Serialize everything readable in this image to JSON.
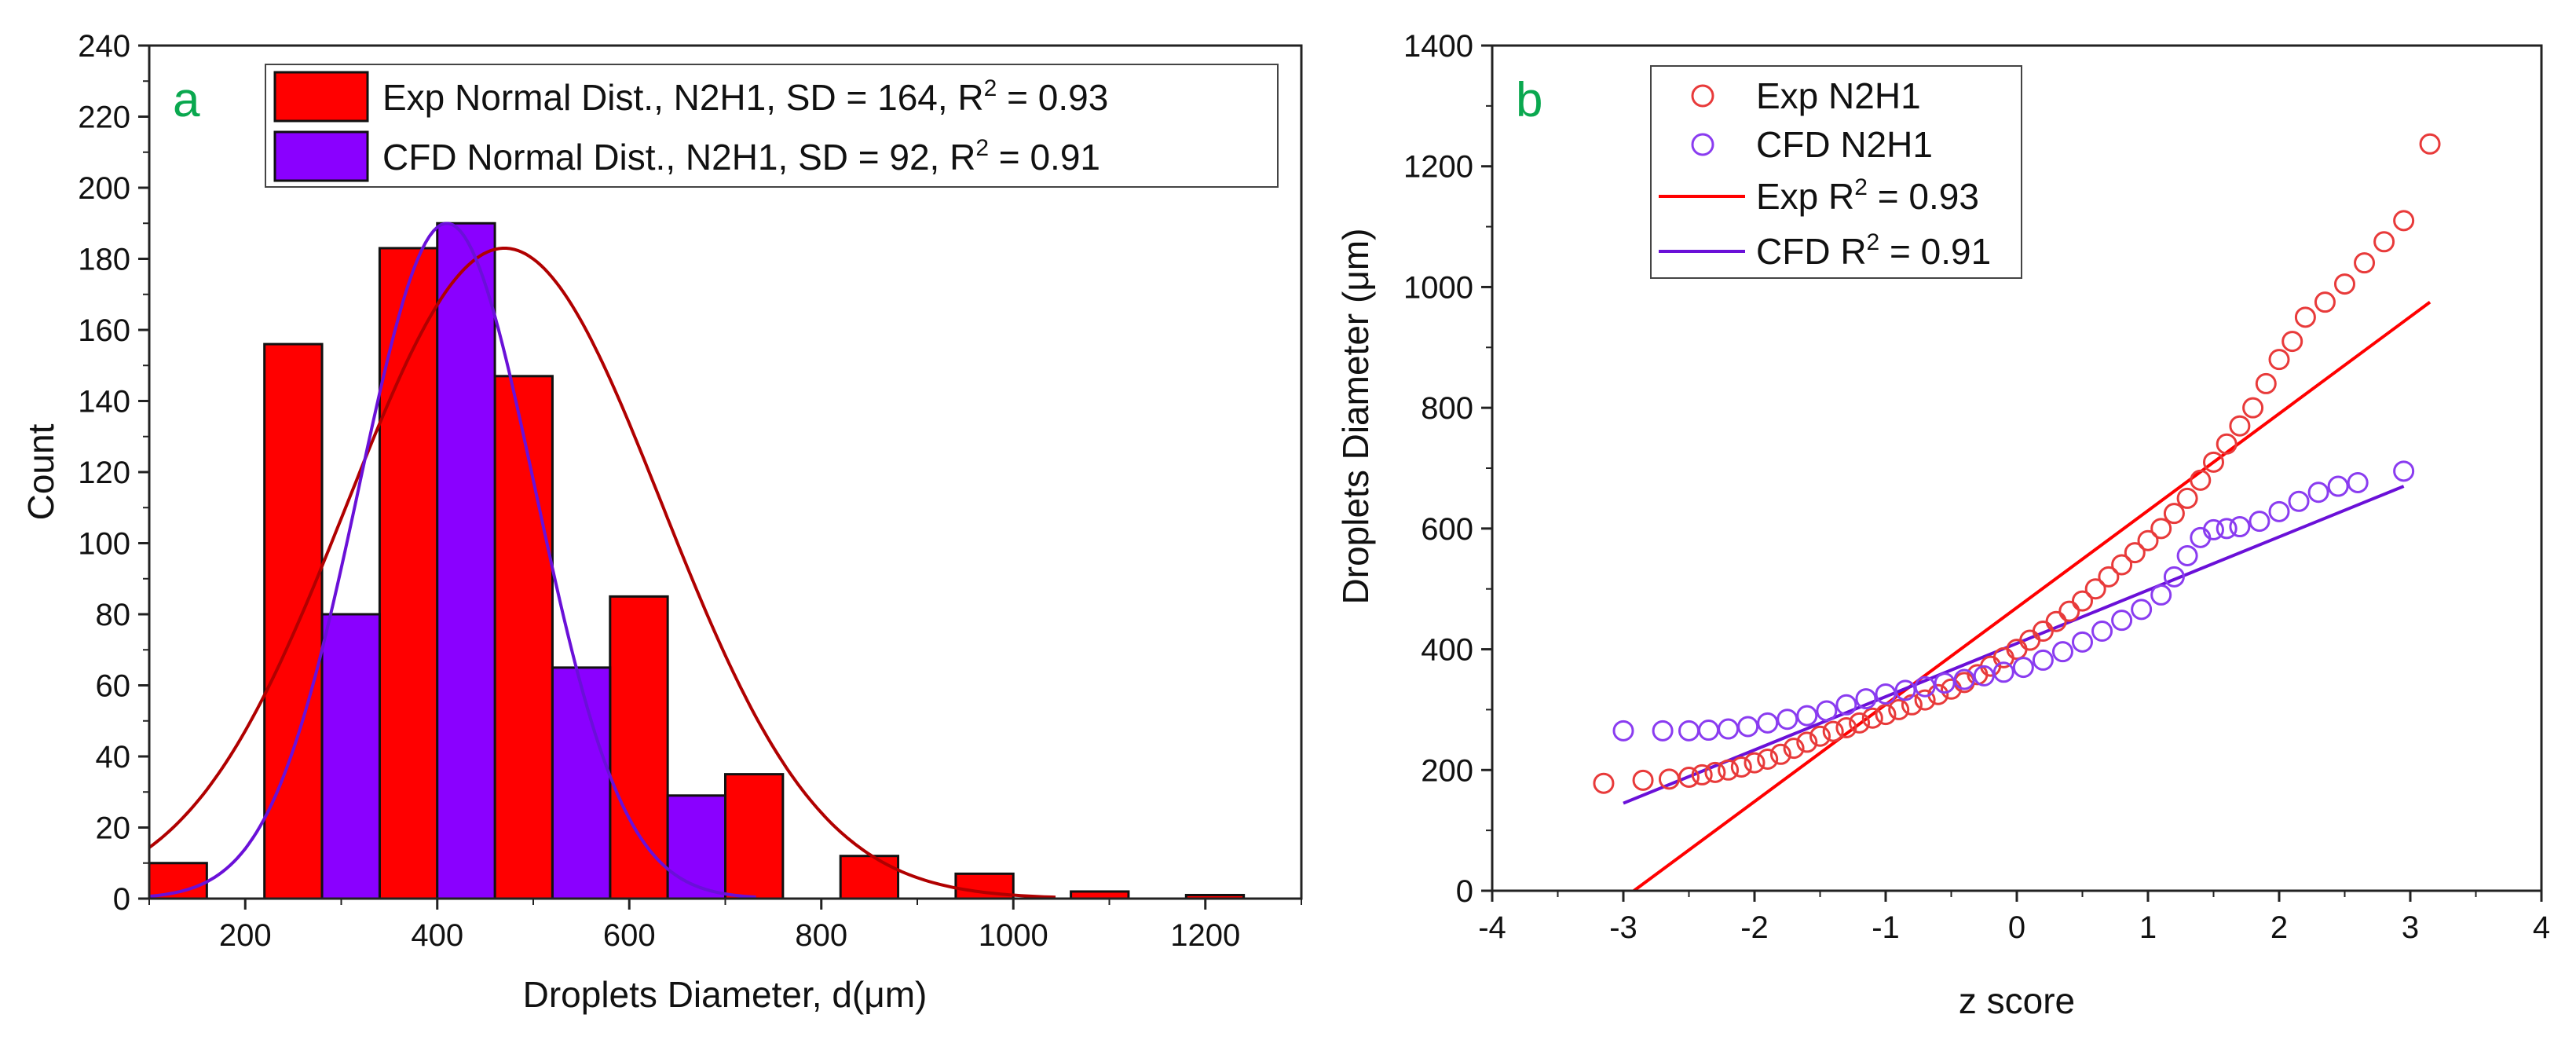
{
  "figure": {
    "panels": [
      "a",
      "b"
    ],
    "colors": {
      "exp_bar": "#ff0000",
      "cfd_bar": "#8a00ff",
      "exp_curve": "#b00000",
      "cfd_curve": "#6a10d8",
      "exp_marker": "#e83a3a",
      "cfd_marker": "#8a3cf0",
      "panel_tag": "#0aa84f"
    }
  },
  "chart_data": [
    {
      "panel": "a",
      "type": "bar",
      "title": "",
      "xlabel": "Droplets Diameter, d(μm)",
      "ylabel": "Count",
      "xlim": [
        100,
        1300
      ],
      "ylim": [
        0,
        240
      ],
      "x_ticks": [
        200,
        400,
        600,
        800,
        1000,
        1200
      ],
      "y_ticks": [
        0,
        20,
        40,
        60,
        80,
        100,
        120,
        140,
        160,
        180,
        200,
        220,
        240
      ],
      "series": [
        {
          "name": "Exp Normal Dist., N2H1, SD = 164, R2 = 0.93",
          "legend_main": "Exp Normal Dist., N2H1, SD = 164, R",
          "legend_sup": "2",
          "legend_tail": " = 0.93",
          "kind": "histogram",
          "bins": [
            {
              "x0": 100,
              "x1": 160,
              "value": 10
            },
            {
              "x0": 220,
              "x1": 280,
              "value": 156
            },
            {
              "x0": 340,
              "x1": 400,
              "value": 183
            },
            {
              "x0": 460,
              "x1": 520,
              "value": 147
            },
            {
              "x0": 580,
              "x1": 640,
              "value": 85
            },
            {
              "x0": 700,
              "x1": 760,
              "value": 35
            },
            {
              "x0": 820,
              "x1": 880,
              "value": 12
            },
            {
              "x0": 940,
              "x1": 1000,
              "value": 7
            },
            {
              "x0": 1060,
              "x1": 1120,
              "value": 2
            },
            {
              "x0": 1180,
              "x1": 1240,
              "value": 1
            }
          ],
          "fit": {
            "mean": 470,
            "sd": 164,
            "peak": 183
          }
        },
        {
          "name": "CFD Normal Dist., N2H1, SD = 92, R2 = 0.91",
          "legend_main": "CFD Normal Dist., N2H1, SD = 92, R",
          "legend_sup": "2",
          "legend_tail": " = 0.91",
          "kind": "histogram",
          "bins": [
            {
              "x0": 280,
              "x1": 340,
              "value": 80
            },
            {
              "x0": 400,
              "x1": 460,
              "value": 190
            },
            {
              "x0": 520,
              "x1": 580,
              "value": 65
            },
            {
              "x0": 640,
              "x1": 700,
              "value": 29
            }
          ],
          "fit": {
            "mean": 410,
            "sd": 92,
            "peak": 190
          }
        }
      ]
    },
    {
      "panel": "b",
      "type": "scatter",
      "title": "",
      "xlabel": "z score",
      "ylabel": "Droplets Diameter (μm)",
      "xlim": [
        -4,
        4
      ],
      "ylim": [
        0,
        1400
      ],
      "x_ticks": [
        -4,
        -3,
        -2,
        -1,
        0,
        1,
        2,
        3,
        4
      ],
      "y_ticks": [
        0,
        200,
        400,
        600,
        800,
        1000,
        1200,
        1400
      ],
      "series": [
        {
          "name": "Exp N2H1",
          "kind": "markers",
          "points": [
            [
              -3.15,
              178
            ],
            [
              -2.85,
              183
            ],
            [
              -2.65,
              185
            ],
            [
              -2.5,
              188
            ],
            [
              -2.4,
              192
            ],
            [
              -2.3,
              196
            ],
            [
              -2.2,
              200
            ],
            [
              -2.1,
              205
            ],
            [
              -2.0,
              212
            ],
            [
              -1.9,
              218
            ],
            [
              -1.8,
              226
            ],
            [
              -1.7,
              236
            ],
            [
              -1.6,
              246
            ],
            [
              -1.5,
              256
            ],
            [
              -1.4,
              264
            ],
            [
              -1.3,
              270
            ],
            [
              -1.2,
              278
            ],
            [
              -1.1,
              286
            ],
            [
              -1.0,
              292
            ],
            [
              -0.9,
              300
            ],
            [
              -0.8,
              308
            ],
            [
              -0.7,
              316
            ],
            [
              -0.6,
              325
            ],
            [
              -0.5,
              334
            ],
            [
              -0.4,
              345
            ],
            [
              -0.3,
              358
            ],
            [
              -0.2,
              372
            ],
            [
              -0.1,
              386
            ],
            [
              0.0,
              400
            ],
            [
              0.1,
              415
            ],
            [
              0.2,
              430
            ],
            [
              0.3,
              446
            ],
            [
              0.4,
              463
            ],
            [
              0.5,
              480
            ],
            [
              0.6,
              500
            ],
            [
              0.7,
              520
            ],
            [
              0.8,
              540
            ],
            [
              0.9,
              560
            ],
            [
              1.0,
              580
            ],
            [
              1.1,
              600
            ],
            [
              1.2,
              625
            ],
            [
              1.3,
              650
            ],
            [
              1.4,
              680
            ],
            [
              1.5,
              710
            ],
            [
              1.6,
              740
            ],
            [
              1.7,
              770
            ],
            [
              1.8,
              800
            ],
            [
              1.9,
              840
            ],
            [
              2.0,
              880
            ],
            [
              2.1,
              910
            ],
            [
              2.2,
              950
            ],
            [
              2.35,
              975
            ],
            [
              2.5,
              1005
            ],
            [
              2.65,
              1040
            ],
            [
              2.8,
              1075
            ],
            [
              2.95,
              1110
            ],
            [
              3.15,
              1237
            ]
          ]
        },
        {
          "name": "CFD N2H1",
          "kind": "markers",
          "points": [
            [
              -3.0,
              265
            ],
            [
              -2.7,
              265
            ],
            [
              -2.5,
              265
            ],
            [
              -2.35,
              266
            ],
            [
              -2.2,
              268
            ],
            [
              -2.05,
              272
            ],
            [
              -1.9,
              278
            ],
            [
              -1.75,
              284
            ],
            [
              -1.6,
              290
            ],
            [
              -1.45,
              298
            ],
            [
              -1.3,
              308
            ],
            [
              -1.15,
              318
            ],
            [
              -1.0,
              326
            ],
            [
              -0.85,
              332
            ],
            [
              -0.7,
              338
            ],
            [
              -0.55,
              344
            ],
            [
              -0.4,
              350
            ],
            [
              -0.25,
              356
            ],
            [
              -0.1,
              362
            ],
            [
              0.05,
              370
            ],
            [
              0.2,
              382
            ],
            [
              0.35,
              396
            ],
            [
              0.5,
              412
            ],
            [
              0.65,
              430
            ],
            [
              0.8,
              448
            ],
            [
              0.95,
              466
            ],
            [
              1.1,
              490
            ],
            [
              1.2,
              520
            ],
            [
              1.3,
              555
            ],
            [
              1.4,
              585
            ],
            [
              1.5,
              598
            ],
            [
              1.6,
              600
            ],
            [
              1.7,
              603
            ],
            [
              1.85,
              612
            ],
            [
              2.0,
              628
            ],
            [
              2.15,
              645
            ],
            [
              2.3,
              660
            ],
            [
              2.45,
              670
            ],
            [
              2.6,
              676
            ],
            [
              2.95,
              695
            ]
          ]
        },
        {
          "name": "Exp R2 = 0.93",
          "legend_main": "Exp R",
          "legend_sup": "2",
          "legend_tail": " = 0.93",
          "kind": "line",
          "points": [
            [
              -2.92,
              0
            ],
            [
              3.15,
              975
            ]
          ]
        },
        {
          "name": "CFD R2 = 0.91",
          "legend_main": "CFD R",
          "legend_sup": "2",
          "legend_tail": " = 0.91",
          "kind": "line",
          "points": [
            [
              -3.0,
              145
            ],
            [
              2.95,
              670
            ]
          ]
        }
      ]
    }
  ]
}
